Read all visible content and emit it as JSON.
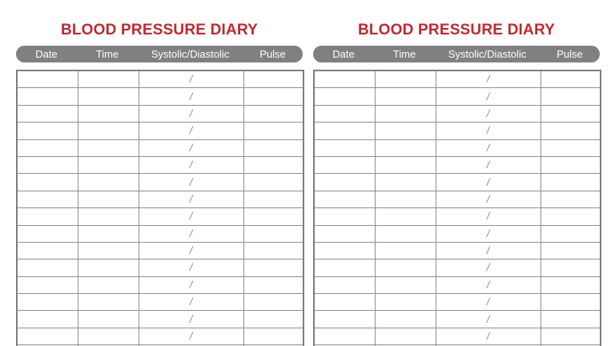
{
  "diaries": [
    {
      "title": "BLOOD PRESSURE DIARY",
      "columns": [
        "Date",
        "Time",
        "Systolic/Diastolic",
        "Pulse"
      ],
      "separator": "/"
    },
    {
      "title": "BLOOD PRESSURE DIARY",
      "columns": [
        "Date",
        "Time",
        "Systolic/Diastolic",
        "Pulse"
      ],
      "separator": "/"
    }
  ],
  "colors": {
    "title_red": "#c2272d",
    "header_gray": "#808083",
    "grid_line": "#8f8f92"
  }
}
